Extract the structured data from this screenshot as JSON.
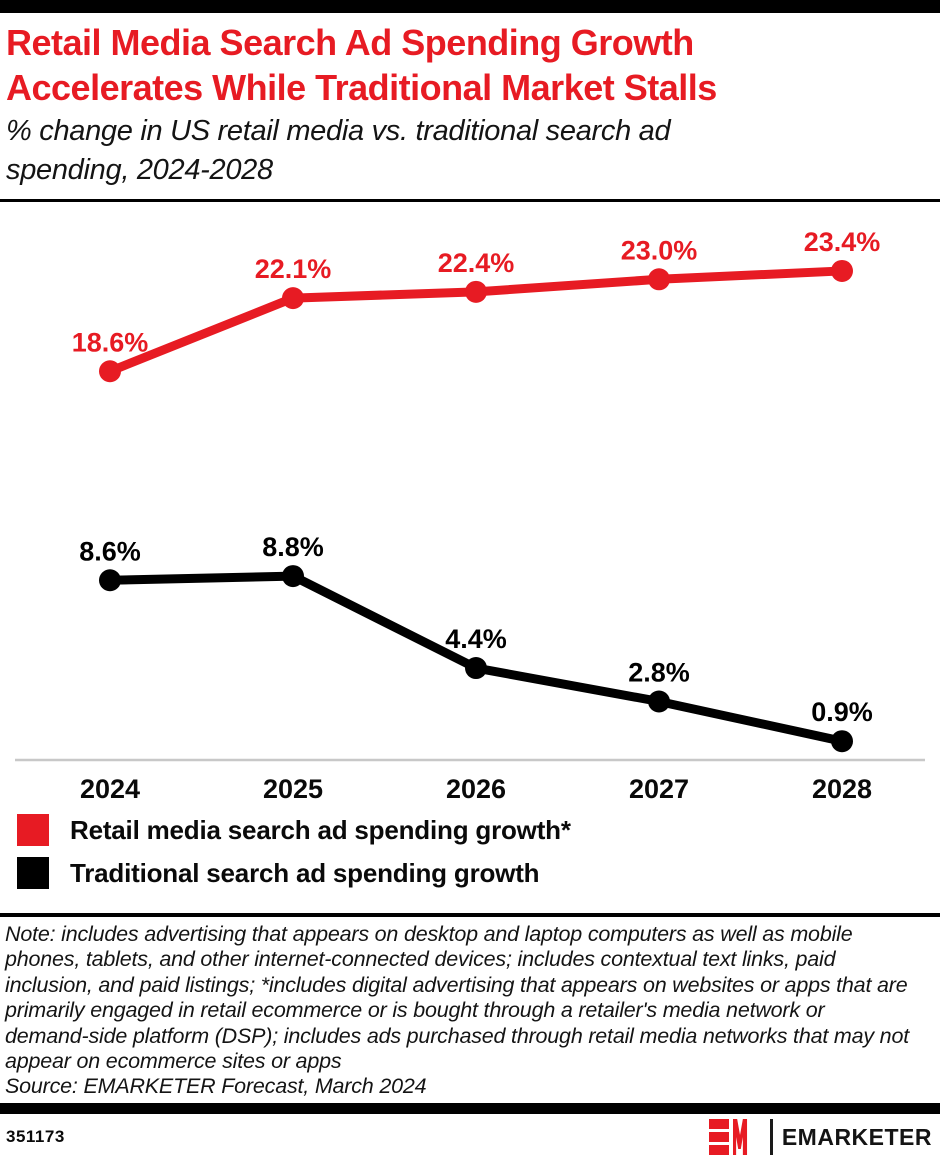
{
  "header": {
    "title_line1": "Retail Media Search Ad Spending Growth",
    "title_line2": "Accelerates While Traditional Market Stalls",
    "subtitle": "% change in US retail media vs. traditional search ad spending, 2024-2028"
  },
  "chart_data": {
    "type": "line",
    "title": "Retail Media Search Ad Spending Growth Accelerates While Traditional Market Stalls",
    "subtitle": "% change in US retail media vs. traditional search ad spending, 2024-2028",
    "categories": [
      "2024",
      "2025",
      "2026",
      "2027",
      "2028"
    ],
    "series": [
      {
        "name": "Retail media search ad spending growth*",
        "color": "#e71b23",
        "values": [
          18.6,
          22.1,
          22.4,
          23.0,
          23.4
        ],
        "labels": [
          "18.6%",
          "22.1%",
          "22.4%",
          "23.0%",
          "23.4%"
        ]
      },
      {
        "name": "Traditional search ad spending growth",
        "color": "#000000",
        "values": [
          8.6,
          8.8,
          4.4,
          2.8,
          0.9
        ],
        "labels": [
          "8.6%",
          "8.8%",
          "4.4%",
          "2.8%",
          "0.9%"
        ]
      }
    ],
    "xlabel": "",
    "ylabel": "",
    "ylim": [
      0,
      26.6
    ],
    "grid": false,
    "legend_position": "bottom",
    "axis_color": "#c8c8c8"
  },
  "note": {
    "text": "Note: includes advertising that appears on desktop and laptop computers as well as mobile phones, tablets, and other internet-connected devices; includes contextual text links, paid inclusion, and paid listings; *includes digital advertising that appears on websites or apps that are primarily engaged in retail ecommerce or is bought through a retailer's media network or demand-side platform (DSP); includes ads purchased through retail media networks that may not appear on ecommerce sites or apps",
    "source": "Source: EMARKETER Forecast, March 2024"
  },
  "footer": {
    "id": "351173",
    "brand": "EMARKETER"
  }
}
